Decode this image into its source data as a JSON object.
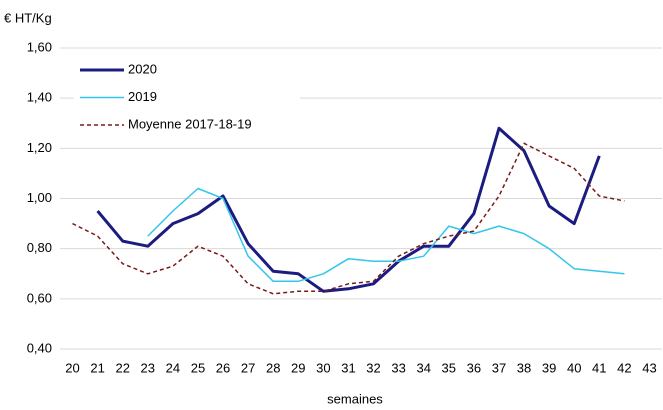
{
  "chart_data": {
    "type": "line",
    "y_axis_label": "€ HT/Kg",
    "x_axis_label": "semaines",
    "categories": [
      "20",
      "21",
      "22",
      "23",
      "24",
      "25",
      "26",
      "27",
      "28",
      "29",
      "30",
      "31",
      "32",
      "33",
      "34",
      "35",
      "36",
      "37",
      "38",
      "39",
      "40",
      "41",
      "42",
      "43"
    ],
    "series": [
      {
        "name": "2020",
        "color": "#1c1c80",
        "width": 3,
        "dash": "none",
        "values": [
          null,
          0.95,
          0.83,
          0.81,
          0.9,
          0.94,
          1.01,
          0.82,
          0.71,
          0.7,
          0.63,
          0.64,
          0.66,
          0.75,
          0.81,
          0.81,
          0.94,
          1.28,
          1.19,
          0.97,
          0.9,
          1.17,
          null,
          null
        ]
      },
      {
        "name": "2019",
        "color": "#33c6ec",
        "width": 1.5,
        "dash": "none",
        "values": [
          null,
          null,
          null,
          0.85,
          0.95,
          1.04,
          1.0,
          0.77,
          0.67,
          0.67,
          0.7,
          0.76,
          0.75,
          0.75,
          0.77,
          0.89,
          0.86,
          0.89,
          0.86,
          0.8,
          0.72,
          0.71,
          0.7,
          null
        ]
      },
      {
        "name": "Moyenne 2017-18-19",
        "color": "#7a1a1a",
        "width": 1.5,
        "dash": "4 3",
        "values": [
          0.9,
          0.85,
          0.74,
          0.7,
          0.73,
          0.81,
          0.77,
          0.66,
          0.62,
          0.63,
          0.63,
          0.66,
          0.67,
          0.77,
          0.82,
          0.85,
          0.87,
          1.01,
          1.22,
          1.17,
          1.12,
          1.01,
          0.99,
          null
        ]
      }
    ],
    "ylim": [
      0.4,
      1.6
    ],
    "yticks": [
      {
        "value": 0.4,
        "label": "0,40"
      },
      {
        "value": 0.6,
        "label": "0,60"
      },
      {
        "value": 0.8,
        "label": "0,80"
      },
      {
        "value": 1.0,
        "label": "1,00"
      },
      {
        "value": 1.2,
        "label": "1,20"
      },
      {
        "value": 1.4,
        "label": "1,40"
      },
      {
        "value": 1.6,
        "label": "1,60"
      }
    ],
    "grid": true,
    "legend": "top-left"
  }
}
